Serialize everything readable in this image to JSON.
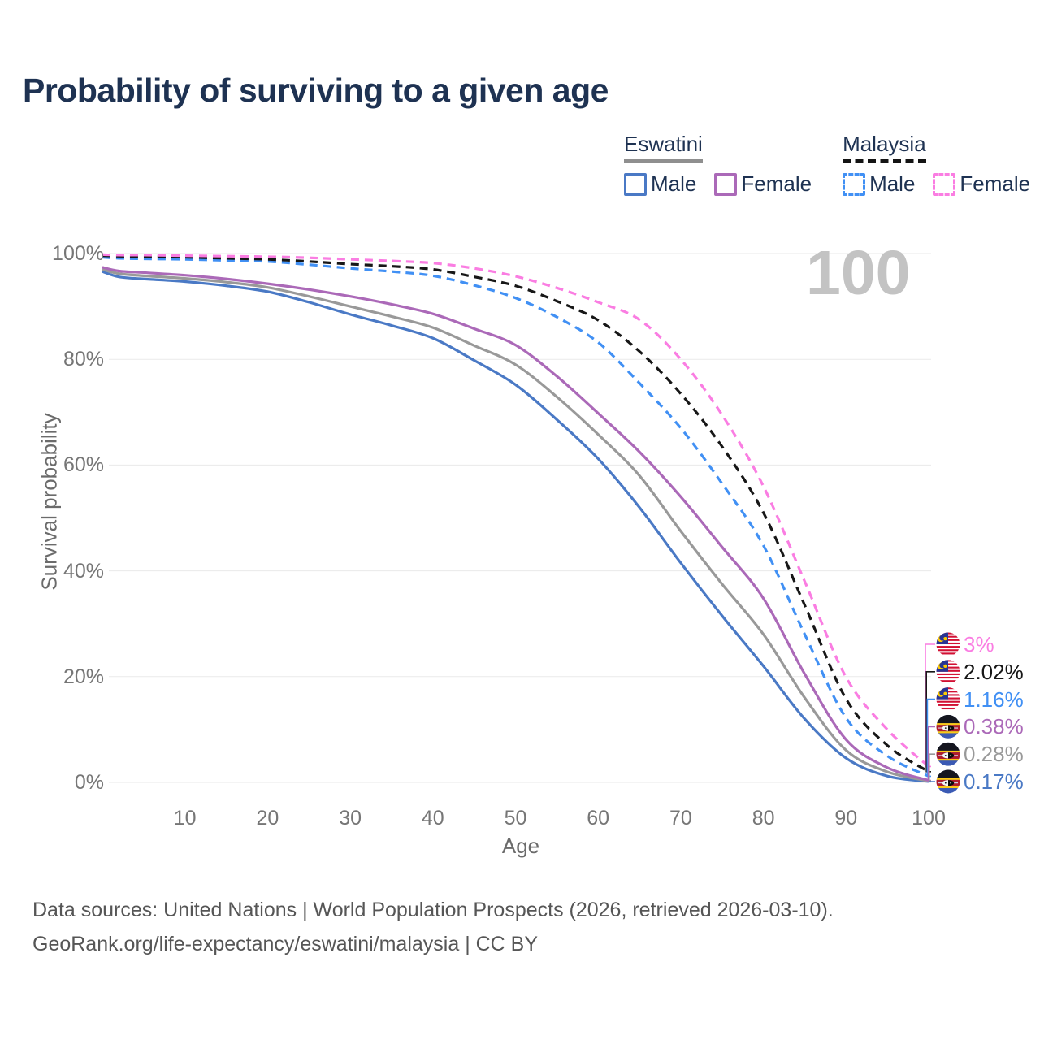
{
  "header": {
    "title": "Probability of surviving to a given age"
  },
  "legend": {
    "groups": [
      {
        "label": "Eswatini",
        "line_style": "solid",
        "underline_color": "#8f8f8f",
        "items": [
          {
            "label": "Male",
            "color": "#4a79c5"
          },
          {
            "label": "Female",
            "color": "#ab69b8"
          }
        ]
      },
      {
        "label": "Malaysia",
        "line_style": "dashed",
        "underline_color": "#141414",
        "items": [
          {
            "label": "Male",
            "color": "#4190f4"
          },
          {
            "label": "Female",
            "color": "#fa7de2"
          }
        ]
      }
    ]
  },
  "axes": {
    "y_label": "Survival probability",
    "x_label": "Age",
    "y_ticks": [
      "0%",
      "20%",
      "40%",
      "60%",
      "80%",
      "100%"
    ],
    "x_ticks": [
      "10",
      "20",
      "30",
      "40",
      "50",
      "60",
      "70",
      "80",
      "90",
      "100"
    ]
  },
  "watermark": "100",
  "footer": {
    "line1": "Data sources: United Nations | World Population Prospects (2026, retrieved 2026-03-10).",
    "line2": "GeoRank.org/life-expectancy/eswatini/malaysia | CC BY"
  },
  "chart_data": {
    "type": "line",
    "title": "Probability of surviving to a given age",
    "xlabel": "Age",
    "ylabel": "Survival probability",
    "xlim": [
      0,
      100
    ],
    "ylim": [
      0,
      100
    ],
    "grid": "horizontal",
    "legend_position": "top-right",
    "x": [
      0,
      2,
      5,
      10,
      15,
      20,
      25,
      30,
      35,
      40,
      45,
      50,
      55,
      60,
      65,
      70,
      75,
      80,
      85,
      90,
      95,
      100
    ],
    "series": [
      {
        "name": "Eswatini — Male",
        "country": "Eswatini",
        "sex": "male",
        "line": "solid",
        "color": "#4a79c5",
        "flag": "eswatini",
        "end_label": "0.17%",
        "values": [
          96.6,
          95.6,
          95.2,
          94.7,
          93.9,
          92.8,
          90.8,
          88.5,
          86.4,
          84.0,
          79.8,
          75.2,
          68.6,
          61.2,
          52.0,
          41.5,
          31.5,
          22.0,
          12.0,
          4.6,
          1.2,
          0.17
        ]
      },
      {
        "name": "Eswatini — Both sexes",
        "country": "Eswatini",
        "sex": "both",
        "line": "solid",
        "color": "#999999",
        "flag": "eswatini",
        "end_label": "0.28%",
        "values": [
          97.0,
          96.2,
          95.8,
          95.3,
          94.6,
          93.6,
          91.9,
          90.0,
          88.1,
          86.0,
          82.6,
          79.0,
          72.9,
          65.8,
          58.0,
          47.5,
          37.5,
          28.0,
          16.0,
          6.1,
          2.0,
          0.28
        ]
      },
      {
        "name": "Eswatini — Female",
        "country": "Eswatini",
        "sex": "female",
        "line": "solid",
        "color": "#ab69b8",
        "flag": "eswatini",
        "end_label": "0.38%",
        "values": [
          97.4,
          96.7,
          96.4,
          95.9,
          95.2,
          94.3,
          93.2,
          91.9,
          90.4,
          88.6,
          85.8,
          82.7,
          76.8,
          69.8,
          62.5,
          54.0,
          44.5,
          34.8,
          20.5,
          8.1,
          2.8,
          0.38
        ]
      },
      {
        "name": "Malaysia — Male",
        "country": "Malaysia",
        "sex": "male",
        "line": "dashed",
        "color": "#4190f4",
        "flag": "malaysia",
        "end_label": "1.16%",
        "values": [
          99.3,
          99.1,
          99.0,
          98.9,
          98.7,
          98.5,
          97.9,
          97.2,
          96.6,
          95.8,
          94.0,
          91.6,
          88.0,
          83.2,
          75.5,
          67.0,
          56.5,
          44.8,
          28.0,
          12.2,
          5.0,
          1.16
        ]
      },
      {
        "name": "Malaysia — Both sexes",
        "country": "Malaysia",
        "sex": "both",
        "line": "dashed",
        "color": "#171717",
        "flag": "malaysia",
        "end_label": "2.02%",
        "values": [
          99.6,
          99.5,
          99.4,
          99.3,
          99.1,
          98.9,
          98.5,
          98.0,
          97.6,
          97.0,
          95.6,
          93.9,
          91.0,
          87.4,
          81.5,
          73.5,
          63.5,
          51.0,
          33.5,
          15.8,
          7.0,
          2.02
        ]
      },
      {
        "name": "Malaysia — Female",
        "country": "Malaysia",
        "sex": "female",
        "line": "dashed",
        "color": "#fa7de2",
        "flag": "malaysia",
        "end_label": "3%",
        "values": [
          99.8,
          99.7,
          99.7,
          99.6,
          99.5,
          99.4,
          99.2,
          98.9,
          98.6,
          98.2,
          97.2,
          95.7,
          93.5,
          90.8,
          87.5,
          80.0,
          69.5,
          56.0,
          38.0,
          19.9,
          10.0,
          3.0
        ]
      }
    ]
  }
}
